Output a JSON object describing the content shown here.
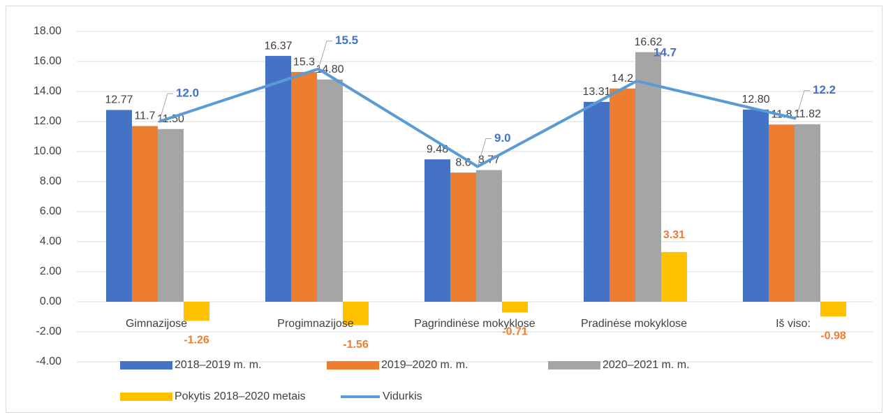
{
  "chart_data": {
    "type": "bar",
    "categories": [
      "Gimnazijose",
      "Progimnazijose",
      "Pagrindinėse mokyklose",
      "Pradinėse mokyklose",
      "Iš viso:"
    ],
    "series": [
      {
        "name": "2018–2019 m. m.",
        "color": "#4472c4",
        "values": [
          12.77,
          16.37,
          9.48,
          13.31,
          12.8
        ],
        "value_labels": [
          "12.77",
          "16.37",
          "9.48",
          "13.31",
          "12.80"
        ]
      },
      {
        "name": "2019–2020 m. m.",
        "color": "#ed7d31",
        "values": [
          11.7,
          15.3,
          8.6,
          14.2,
          11.8
        ],
        "value_labels": [
          "11.7",
          "15.3",
          "8.6",
          "14.2",
          "11.8"
        ]
      },
      {
        "name": "2020–2021 m. m.",
        "color": "#a5a5a5",
        "values": [
          11.5,
          14.8,
          8.77,
          16.62,
          11.82
        ],
        "value_labels": [
          "11.50",
          "14.80",
          "8.77",
          "16.62",
          "11.82"
        ]
      },
      {
        "name": "Pokytis 2018–2020 metais",
        "color": "#ffc000",
        "values": [
          -1.26,
          -1.56,
          -0.71,
          3.31,
          -0.98
        ],
        "value_labels": [
          "-1.26",
          "-1.56",
          "-0.71",
          "3.31",
          "-0.98"
        ]
      },
      {
        "name": "Vidurkis",
        "type": "line",
        "color": "#5b9bd5",
        "values": [
          12.0,
          15.5,
          9.0,
          14.7,
          12.2
        ],
        "value_labels": [
          "12.0",
          "15.5",
          "9.0",
          "14.7",
          "12.2"
        ]
      }
    ],
    "ylim": [
      -4,
      18
    ],
    "yticks": [
      {
        "value": -4,
        "label": "-4.00"
      },
      {
        "value": -2,
        "label": "-2.00"
      },
      {
        "value": 0,
        "label": "0.00"
      },
      {
        "value": 2,
        "label": "2.00"
      },
      {
        "value": 4,
        "label": "4.00"
      },
      {
        "value": 6,
        "label": "6.00"
      },
      {
        "value": 8,
        "label": "8.00"
      },
      {
        "value": 10,
        "label": "10.00"
      },
      {
        "value": 12,
        "label": "12.00"
      },
      {
        "value": 14,
        "label": "14.00"
      },
      {
        "value": 16,
        "label": "16.00"
      },
      {
        "value": 18,
        "label": "18.00"
      }
    ],
    "grid": true
  }
}
